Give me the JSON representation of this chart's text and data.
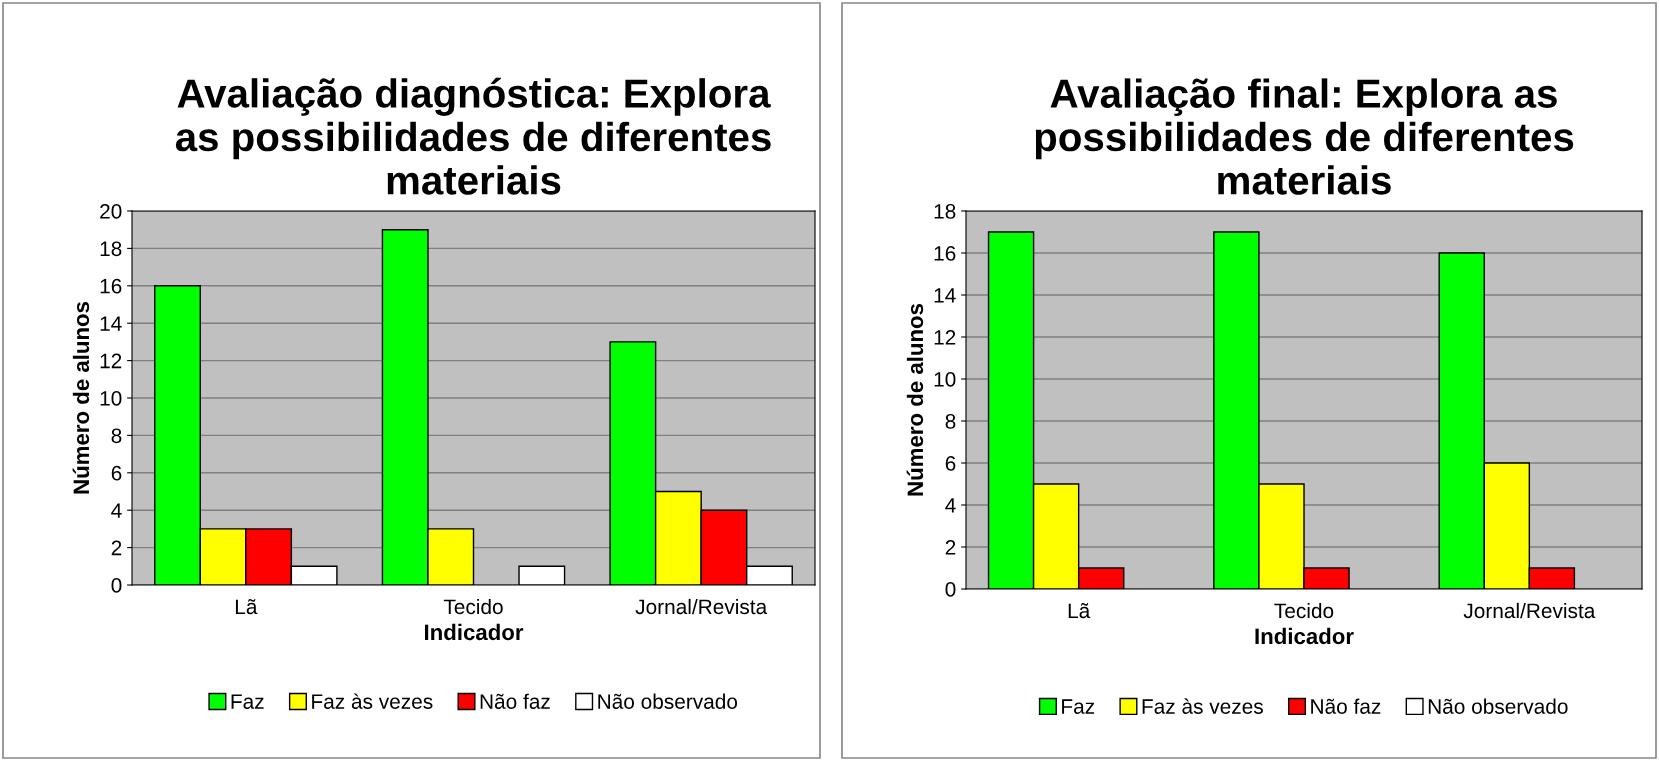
{
  "chart_data": [
    {
      "type": "bar",
      "title": "Avaliação diagnóstica: Explora as possibilidades de diferentes materiais",
      "xlabel": "Indicador",
      "ylabel": "Número de alunos",
      "categories": [
        "Lã",
        "Tecido",
        "Jornal/Revista"
      ],
      "ylim": [
        0,
        20
      ],
      "yticks": [
        0,
        2,
        4,
        6,
        8,
        10,
        12,
        14,
        16,
        18,
        20
      ],
      "grid": "y",
      "legend": "bottom",
      "series": [
        {
          "name": "Faz",
          "color": "#00ff00",
          "values": [
            16,
            19,
            13
          ]
        },
        {
          "name": "Faz às vezes",
          "color": "#ffff00",
          "values": [
            3,
            3,
            5
          ]
        },
        {
          "name": "Não faz",
          "color": "#ff0000",
          "values": [
            3,
            0,
            4
          ]
        },
        {
          "name": "Não observado",
          "color": "#ffffff",
          "values": [
            1,
            1,
            1
          ]
        }
      ]
    },
    {
      "type": "bar",
      "title": "Avaliação final: Explora as possibilidades de diferentes materiais",
      "xlabel": "Indicador",
      "ylabel": "Número de alunos",
      "categories": [
        "Lã",
        "Tecido",
        "Jornal/Revista"
      ],
      "ylim": [
        0,
        18
      ],
      "yticks": [
        0,
        2,
        4,
        6,
        8,
        10,
        12,
        14,
        16,
        18
      ],
      "grid": "y",
      "legend": "bottom",
      "series": [
        {
          "name": "Faz",
          "color": "#00ff00",
          "values": [
            17,
            17,
            16
          ]
        },
        {
          "name": "Faz às vezes",
          "color": "#ffff00",
          "values": [
            5,
            5,
            6
          ]
        },
        {
          "name": "Não faz",
          "color": "#ff0000",
          "values": [
            1,
            1,
            1
          ]
        },
        {
          "name": "Não observado",
          "color": "#ffffff",
          "values": [
            0,
            0,
            0
          ]
        }
      ]
    }
  ]
}
